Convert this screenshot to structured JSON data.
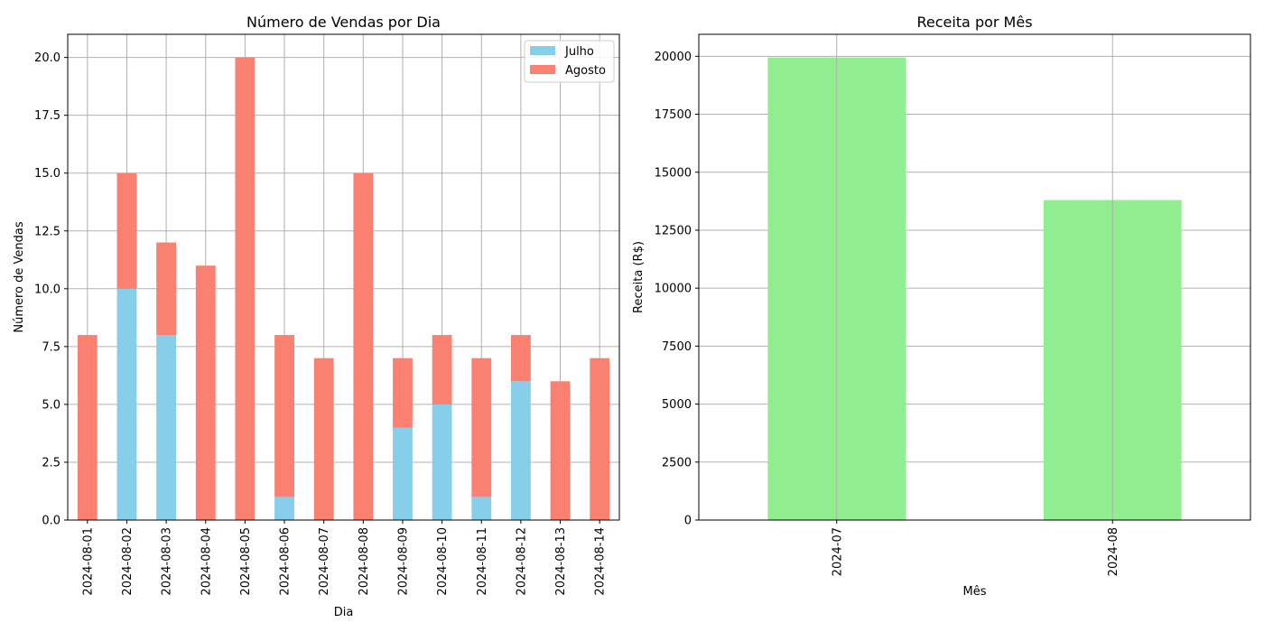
{
  "chart_data": [
    {
      "type": "bar",
      "stacked": true,
      "title": "Número de Vendas por Dia",
      "xlabel": "Dia",
      "ylabel": "Número de Vendas",
      "categories": [
        "2024-08-01",
        "2024-08-02",
        "2024-08-03",
        "2024-08-04",
        "2024-08-05",
        "2024-08-06",
        "2024-08-07",
        "2024-08-08",
        "2024-08-09",
        "2024-08-10",
        "2024-08-11",
        "2024-08-12",
        "2024-08-13",
        "2024-08-14"
      ],
      "series": [
        {
          "name": "Julho",
          "color": "#87ceeb",
          "values": [
            0,
            10,
            8,
            0,
            0,
            1,
            0,
            0,
            4,
            5,
            1,
            6,
            0,
            0
          ]
        },
        {
          "name": "Agosto",
          "color": "#fa8072",
          "values": [
            8,
            5,
            4,
            11,
            20,
            7,
            7,
            15,
            3,
            3,
            6,
            2,
            6,
            7
          ]
        }
      ],
      "ylim": [
        0,
        21
      ],
      "yticks": [
        "0.0",
        "2.5",
        "5.0",
        "7.5",
        "10.0",
        "12.5",
        "15.0",
        "17.5",
        "20.0"
      ],
      "grid": true,
      "legend": "top-right"
    },
    {
      "type": "bar",
      "title": "Receita por Mês",
      "xlabel": "Mês",
      "ylabel": "Receita (R$)",
      "categories": [
        "2024-07",
        "2024-08"
      ],
      "values": [
        19950,
        13800
      ],
      "color": "#90ee90",
      "ylim": [
        0,
        20947.5
      ],
      "yticks": [
        "0",
        "2500",
        "5000",
        "7500",
        "10000",
        "12500",
        "15000",
        "17500",
        "20000"
      ],
      "grid": true
    }
  ]
}
